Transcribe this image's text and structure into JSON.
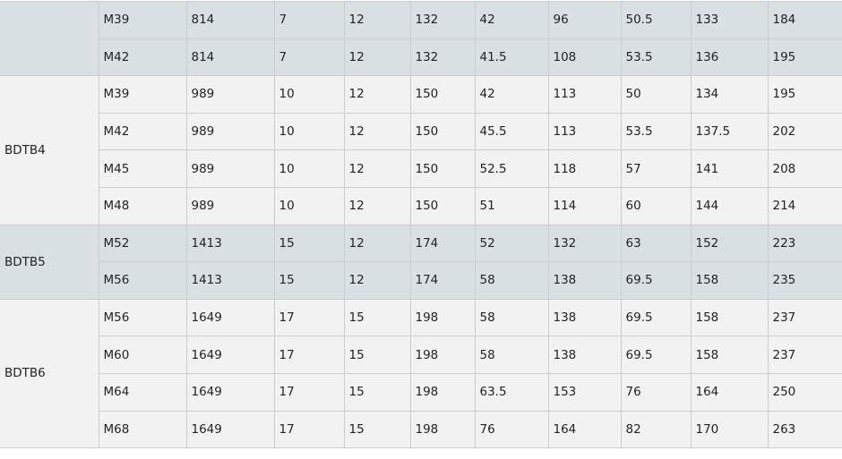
{
  "colors": {
    "group_alt_bg": "#d8e0e3",
    "group_plain_bg": "#f2f2f2",
    "border": "#cccccc"
  },
  "groups": [
    {
      "label": "",
      "shade": "alt",
      "rows": [
        [
          "M39",
          "814",
          "7",
          "12",
          "132",
          "42",
          "96",
          "50.5",
          "133",
          "184"
        ],
        [
          "M42",
          "814",
          "7",
          "12",
          "132",
          "41.5",
          "108",
          "53.5",
          "136",
          "195"
        ]
      ]
    },
    {
      "label": "BDTB4",
      "shade": "plain",
      "rows": [
        [
          "M39",
          "989",
          "10",
          "12",
          "150",
          "42",
          "113",
          "50",
          "134",
          "195"
        ],
        [
          "M42",
          "989",
          "10",
          "12",
          "150",
          "45.5",
          "113",
          "53.5",
          "137.5",
          "202"
        ],
        [
          "M45",
          "989",
          "10",
          "12",
          "150",
          "52.5",
          "118",
          "57",
          "141",
          "208"
        ],
        [
          "M48",
          "989",
          "10",
          "12",
          "150",
          "51",
          "114",
          "60",
          "144",
          "214"
        ]
      ]
    },
    {
      "label": "BDTB5",
      "shade": "alt",
      "rows": [
        [
          "M52",
          "1413",
          "15",
          "12",
          "174",
          "52",
          "132",
          "63",
          "152",
          "223"
        ],
        [
          "M56",
          "1413",
          "15",
          "12",
          "174",
          "58",
          "138",
          "69.5",
          "158",
          "235"
        ]
      ]
    },
    {
      "label": "BDTB6",
      "shade": "plain",
      "rows": [
        [
          "M56",
          "1649",
          "17",
          "15",
          "198",
          "58",
          "138",
          "69.5",
          "158",
          "237"
        ],
        [
          "M60",
          "1649",
          "17",
          "15",
          "198",
          "58",
          "138",
          "69.5",
          "158",
          "237"
        ],
        [
          "M64",
          "1649",
          "17",
          "15",
          "198",
          "63.5",
          "153",
          "76",
          "164",
          "250"
        ],
        [
          "M68",
          "1649",
          "17",
          "15",
          "198",
          "76",
          "164",
          "82",
          "170",
          "263"
        ]
      ]
    }
  ]
}
